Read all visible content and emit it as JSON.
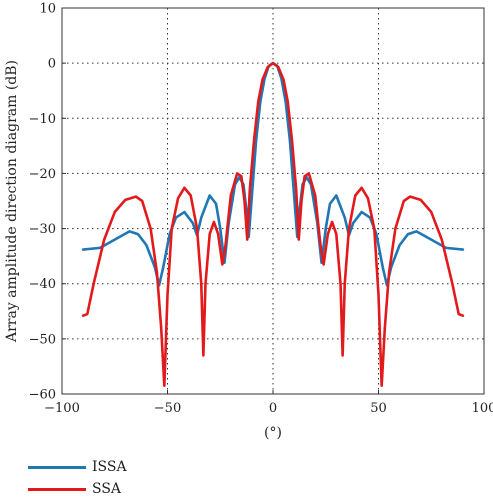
{
  "chart_data": {
    "type": "line",
    "xlabel": "(°)",
    "ylabel": "Array amplitude direction diagram (dB)",
    "xlim": [
      -100,
      100
    ],
    "ylim": [
      -60,
      10
    ],
    "xticks": [
      -100,
      -50,
      0,
      50,
      100
    ],
    "yticks": [
      10,
      0,
      -10,
      -20,
      -30,
      -40,
      -50,
      -60
    ],
    "grid": true,
    "legend_position": "bottom-left",
    "series": [
      {
        "name": "ISSA",
        "color": "#1f77b4",
        "points": [
          [
            -90,
            -33.8
          ],
          [
            -82,
            -33.5
          ],
          [
            -75,
            -32
          ],
          [
            -68,
            -30.5
          ],
          [
            -64,
            -31
          ],
          [
            -60,
            -33
          ],
          [
            -56,
            -37
          ],
          [
            -54,
            -40.3
          ],
          [
            -52,
            -37
          ],
          [
            -49,
            -31
          ],
          [
            -46,
            -28
          ],
          [
            -42,
            -27
          ],
          [
            -38,
            -29
          ],
          [
            -36,
            -31.2
          ],
          [
            -34,
            -28
          ],
          [
            -30,
            -24
          ],
          [
            -27,
            -25.5
          ],
          [
            -25,
            -30
          ],
          [
            -23,
            -36.2
          ],
          [
            -21,
            -29
          ],
          [
            -18,
            -22
          ],
          [
            -16,
            -20.7
          ],
          [
            -14,
            -22
          ],
          [
            -12.5,
            -27
          ],
          [
            -11.5,
            -31.5
          ],
          [
            -10,
            -24
          ],
          [
            -8,
            -14
          ],
          [
            -6,
            -7
          ],
          [
            -4,
            -2.8
          ],
          [
            -2,
            -0.5
          ],
          [
            0,
            0
          ],
          [
            2,
            -0.5
          ],
          [
            4,
            -2.8
          ],
          [
            6,
            -7
          ],
          [
            8,
            -14
          ],
          [
            10,
            -24
          ],
          [
            11.5,
            -31.5
          ],
          [
            12.5,
            -27
          ],
          [
            14,
            -22
          ],
          [
            16,
            -20.7
          ],
          [
            18,
            -22
          ],
          [
            21,
            -29
          ],
          [
            23,
            -36.2
          ],
          [
            25,
            -30
          ],
          [
            27,
            -25.5
          ],
          [
            30,
            -24
          ],
          [
            34,
            -28
          ],
          [
            36,
            -31.2
          ],
          [
            38,
            -29
          ],
          [
            42,
            -27
          ],
          [
            46,
            -28
          ],
          [
            49,
            -31
          ],
          [
            52,
            -37
          ],
          [
            54,
            -40.3
          ],
          [
            56,
            -37
          ],
          [
            60,
            -33
          ],
          [
            64,
            -31
          ],
          [
            68,
            -30.5
          ],
          [
            75,
            -32
          ],
          [
            82,
            -33.5
          ],
          [
            90,
            -33.8
          ]
        ]
      },
      {
        "name": "SSA",
        "color": "#e31a1c",
        "points": [
          [
            -90,
            -45.8
          ],
          [
            -88,
            -45.5
          ],
          [
            -85,
            -40
          ],
          [
            -80,
            -32
          ],
          [
            -75,
            -27
          ],
          [
            -70,
            -24.8
          ],
          [
            -65,
            -24.2
          ],
          [
            -62,
            -25
          ],
          [
            -58,
            -30
          ],
          [
            -55,
            -38
          ],
          [
            -53,
            -48
          ],
          [
            -51.5,
            -58.5
          ],
          [
            -50,
            -42
          ],
          [
            -48,
            -30
          ],
          [
            -45,
            -24.5
          ],
          [
            -42,
            -22.6
          ],
          [
            -39,
            -24
          ],
          [
            -36,
            -30
          ],
          [
            -34,
            -40
          ],
          [
            -33,
            -53
          ],
          [
            -32,
            -40
          ],
          [
            -30,
            -31
          ],
          [
            -28,
            -28.8
          ],
          [
            -26,
            -31
          ],
          [
            -24,
            -36.5
          ],
          [
            -22.5,
            -33
          ],
          [
            -20,
            -24
          ],
          [
            -17,
            -20
          ],
          [
            -15,
            -20.5
          ],
          [
            -13.5,
            -25
          ],
          [
            -12.2,
            -32
          ],
          [
            -11,
            -23
          ],
          [
            -9,
            -14
          ],
          [
            -7,
            -7
          ],
          [
            -5,
            -3
          ],
          [
            -2.5,
            -0.7
          ],
          [
            0,
            0
          ],
          [
            2.5,
            -0.7
          ],
          [
            5,
            -3
          ],
          [
            7,
            -7
          ],
          [
            9,
            -14
          ],
          [
            11,
            -23
          ],
          [
            12.2,
            -32
          ],
          [
            13.5,
            -25
          ],
          [
            15,
            -20.5
          ],
          [
            17,
            -20
          ],
          [
            20,
            -24
          ],
          [
            22.5,
            -33
          ],
          [
            24,
            -36.5
          ],
          [
            26,
            -31
          ],
          [
            28,
            -28.8
          ],
          [
            30,
            -31
          ],
          [
            32,
            -40
          ],
          [
            33,
            -53
          ],
          [
            34,
            -40
          ],
          [
            36,
            -30
          ],
          [
            39,
            -24
          ],
          [
            42,
            -22.6
          ],
          [
            45,
            -24.5
          ],
          [
            48,
            -30
          ],
          [
            50,
            -42
          ],
          [
            51.5,
            -58.5
          ],
          [
            53,
            -48
          ],
          [
            55,
            -38
          ],
          [
            58,
            -30
          ],
          [
            62,
            -25
          ],
          [
            65,
            -24.2
          ],
          [
            70,
            -24.8
          ],
          [
            75,
            -27
          ],
          [
            80,
            -32
          ],
          [
            85,
            -40
          ],
          [
            88,
            -45.5
          ],
          [
            90,
            -45.8
          ]
        ]
      }
    ]
  }
}
